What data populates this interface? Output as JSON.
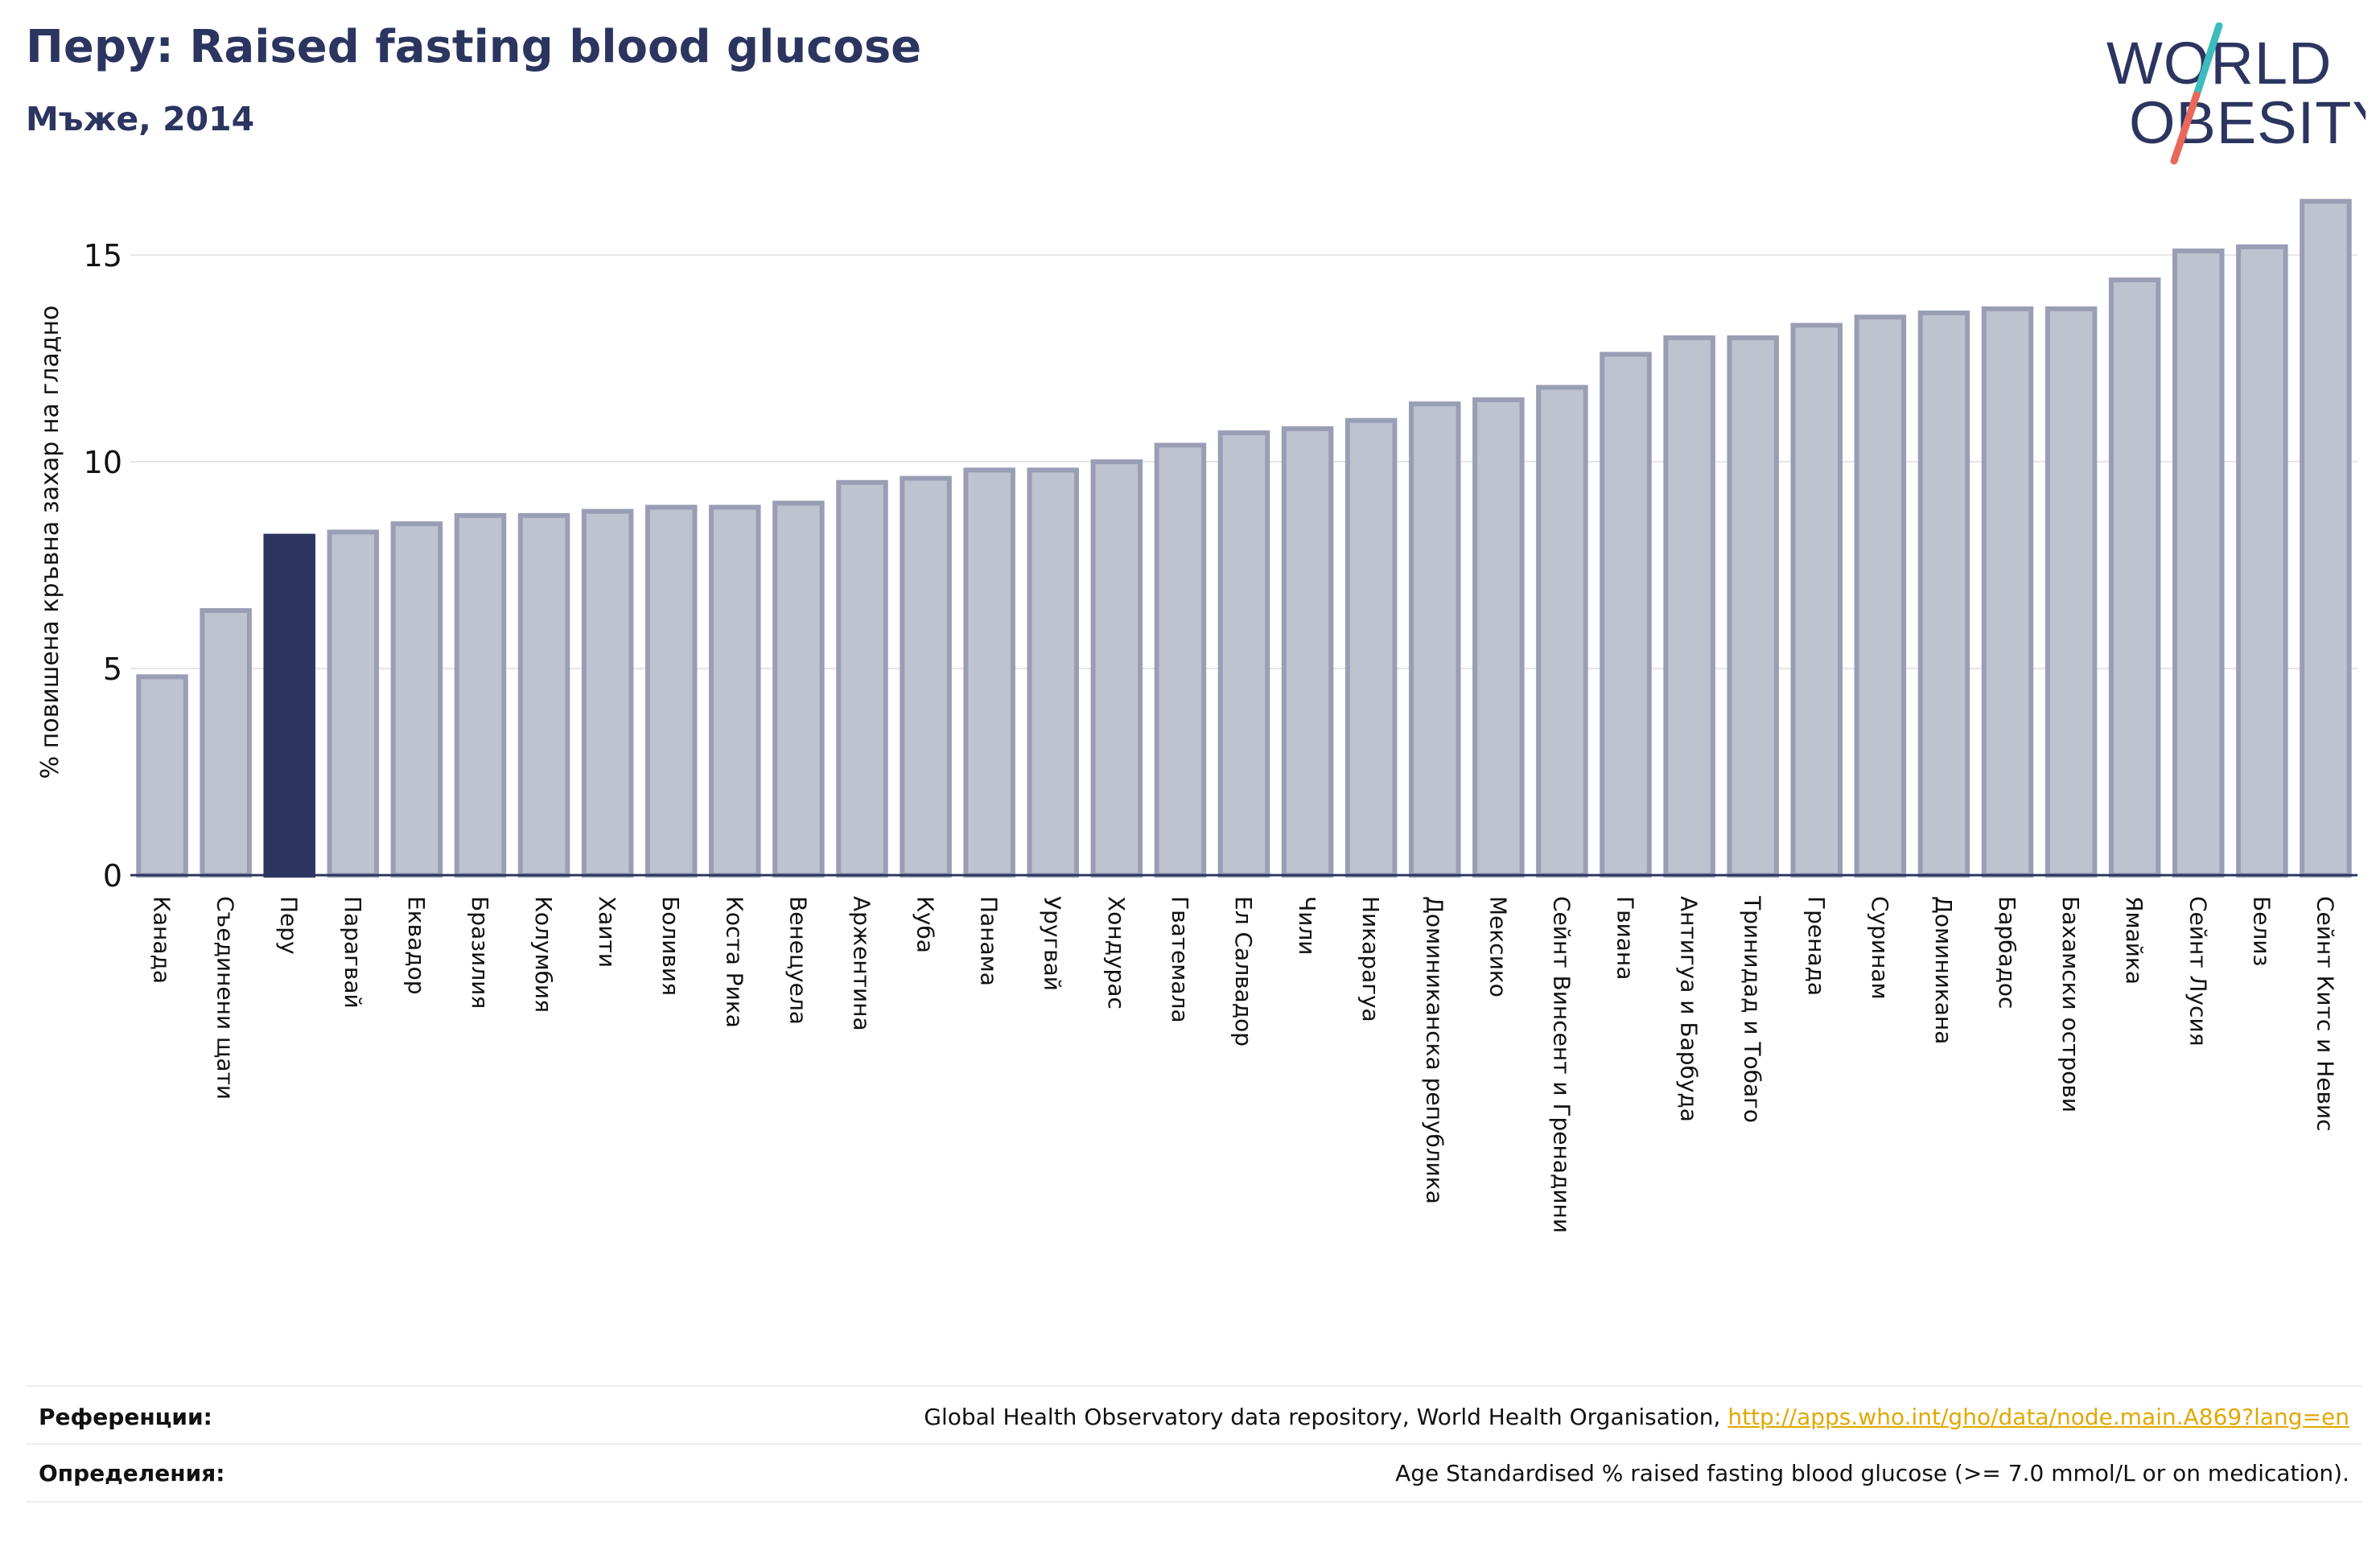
{
  "header": {
    "title": "Перу: Raised fasting blood glucose",
    "subtitle": "Мъже, 2014"
  },
  "logo": {
    "line1": "WORLD",
    "line2": "OBESITY",
    "colors": {
      "text": "#2c3560",
      "slash_top": "#3cbcbc",
      "slash_bottom": "#e8685a"
    }
  },
  "colors": {
    "bar": "#bfc2cf",
    "bar_edge": "#9a9eb5",
    "highlight": "#2c3560",
    "grid": "#e6e6e6",
    "axis": "#2c3560"
  },
  "chart_data": {
    "type": "bar",
    "title": "Перу: Raised fasting blood glucose",
    "subtitle": "Мъже, 2014",
    "ylabel": "% повишена кръвна захар на гладно",
    "xlabel": "",
    "ylim": [
      0,
      16.5
    ],
    "yticks": [
      0,
      5,
      10,
      15
    ],
    "grid": true,
    "highlight": "Перу",
    "categories": [
      "Канада",
      "Съединени щати",
      "Перу",
      "Парагвай",
      "Еквадор",
      "Бразилия",
      "Колумбия",
      "Хаити",
      "Боливия",
      "Коста Рика",
      "Венецуела",
      "Аржентина",
      "Куба",
      "Панама",
      "Уругвай",
      "Хондурас",
      "Гватемала",
      "Ел Салвадор",
      "Чили",
      "Никарагуа",
      "Доминиканска република",
      "Мексико",
      "Сейнт Винсент и Гренадини",
      "Гвиана",
      "Антигуа и Барбуда",
      "Тринидад и Тобаго",
      "Гренада",
      "Суринам",
      "Доминикана",
      "Барбадос",
      "Бахамски острови",
      "Ямайка",
      "Сейнт Лусия",
      "Белиз",
      "Сейнт Китс и Невис"
    ],
    "values": [
      4.8,
      6.4,
      8.2,
      8.3,
      8.5,
      8.7,
      8.7,
      8.8,
      8.9,
      8.9,
      9.0,
      9.5,
      9.6,
      9.8,
      9.8,
      10.0,
      10.4,
      10.7,
      10.8,
      11.0,
      11.4,
      11.5,
      11.8,
      12.6,
      13.0,
      13.0,
      13.3,
      13.5,
      13.6,
      13.7,
      13.7,
      14.4,
      15.1,
      15.2,
      16.3
    ]
  },
  "footer": {
    "references_label": "Референции:",
    "references_text": "Global Health Observatory data repository, World Health Organisation, ",
    "references_link": "http://apps.who.int/gho/data/node.main.A869?lang=en",
    "definitions_label": "Определения:",
    "definitions_text": "Age Standardised % raised fasting blood glucose (>= 7.0 mmol/L or on medication)."
  }
}
